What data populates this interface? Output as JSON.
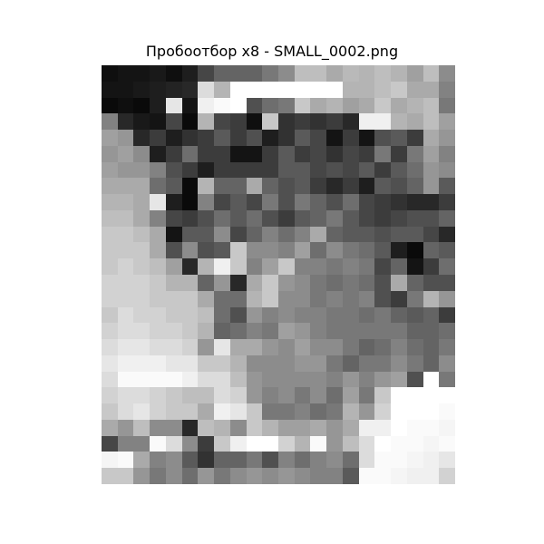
{
  "title": "Пробоотбор x8 - SMALL_0002.png",
  "image": {
    "rows": 26,
    "cols": 22,
    "pixels": [
      [
        15,
        20,
        20,
        25,
        15,
        30,
        70,
        100,
        100,
        100,
        120,
        140,
        190,
        190,
        170,
        185,
        180,
        190,
        180,
        160,
        190,
        140
      ],
      [
        20,
        20,
        25,
        30,
        35,
        40,
        220,
        180,
        255,
        255,
        255,
        255,
        255,
        255,
        255,
        180,
        180,
        190,
        200,
        170,
        170,
        130
      ],
      [
        10,
        15,
        10,
        30,
        230,
        20,
        240,
        250,
        255,
        80,
        110,
        120,
        200,
        170,
        180,
        160,
        170,
        200,
        170,
        180,
        190,
        120
      ],
      [
        130,
        40,
        25,
        20,
        70,
        10,
        180,
        70,
        60,
        15,
        200,
        50,
        60,
        50,
        60,
        40,
        240,
        240,
        180,
        170,
        190,
        160
      ],
      [
        160,
        150,
        40,
        60,
        30,
        50,
        60,
        90,
        60,
        80,
        30,
        50,
        90,
        70,
        20,
        60,
        20,
        80,
        90,
        60,
        170,
        150
      ],
      [
        150,
        160,
        140,
        30,
        60,
        110,
        60,
        60,
        20,
        20,
        60,
        90,
        60,
        70,
        50,
        70,
        60,
        120,
        60,
        120,
        160,
        130
      ],
      [
        160,
        150,
        150,
        130,
        80,
        60,
        30,
        60,
        60,
        60,
        60,
        90,
        90,
        70,
        80,
        70,
        90,
        60,
        90,
        110,
        150,
        140
      ],
      [
        170,
        170,
        170,
        110,
        90,
        10,
        180,
        100,
        100,
        170,
        100,
        80,
        90,
        60,
        40,
        60,
        30,
        90,
        80,
        100,
        150,
        90
      ],
      [
        180,
        180,
        170,
        230,
        30,
        10,
        130,
        70,
        90,
        70,
        120,
        80,
        120,
        100,
        80,
        110,
        70,
        60,
        50,
        40,
        40,
        60
      ],
      [
        190,
        190,
        170,
        130,
        70,
        60,
        80,
        110,
        90,
        110,
        80,
        60,
        90,
        100,
        120,
        90,
        70,
        60,
        70,
        80,
        80,
        100
      ],
      [
        200,
        200,
        190,
        170,
        20,
        90,
        90,
        140,
        70,
        100,
        130,
        110,
        130,
        170,
        100,
        90,
        90,
        80,
        90,
        90,
        70,
        40
      ],
      [
        200,
        200,
        200,
        170,
        80,
        140,
        80,
        90,
        200,
        140,
        140,
        130,
        160,
        110,
        140,
        120,
        110,
        90,
        30,
        10,
        100,
        90
      ],
      [
        200,
        210,
        200,
        190,
        160,
        40,
        180,
        240,
        200,
        130,
        160,
        200,
        130,
        130,
        120,
        130,
        120,
        70,
        100,
        20,
        60,
        110
      ],
      [
        210,
        210,
        210,
        200,
        180,
        180,
        100,
        150,
        40,
        170,
        200,
        150,
        140,
        120,
        110,
        120,
        110,
        80,
        170,
        100,
        80,
        80
      ],
      [
        210,
        210,
        210,
        200,
        200,
        200,
        170,
        110,
        110,
        180,
        200,
        140,
        140,
        120,
        130,
        120,
        130,
        80,
        60,
        120,
        180,
        150
      ],
      [
        200,
        220,
        210,
        210,
        200,
        200,
        190,
        110,
        80,
        150,
        130,
        140,
        130,
        130,
        120,
        120,
        110,
        120,
        100,
        90,
        100,
        60
      ],
      [
        210,
        220,
        220,
        210,
        210,
        200,
        180,
        100,
        110,
        130,
        120,
        160,
        150,
        130,
        120,
        120,
        120,
        120,
        120,
        100,
        100,
        110
      ],
      [
        220,
        230,
        230,
        220,
        220,
        210,
        150,
        230,
        170,
        170,
        150,
        140,
        160,
        140,
        140,
        120,
        100,
        110,
        130,
        110,
        100,
        120
      ],
      [
        230,
        240,
        240,
        240,
        230,
        230,
        200,
        200,
        180,
        140,
        140,
        140,
        150,
        150,
        120,
        100,
        120,
        120,
        140,
        120,
        100,
        140
      ],
      [
        220,
        250,
        250,
        250,
        250,
        240,
        220,
        220,
        190,
        150,
        140,
        140,
        140,
        140,
        130,
        150,
        130,
        150,
        160,
        80,
        255,
        120
      ],
      [
        210,
        220,
        220,
        210,
        200,
        190,
        190,
        220,
        210,
        150,
        130,
        140,
        120,
        140,
        110,
        160,
        120,
        200,
        255,
        255,
        255,
        255
      ],
      [
        200,
        220,
        230,
        210,
        200,
        200,
        170,
        240,
        230,
        200,
        120,
        120,
        130,
        110,
        120,
        180,
        150,
        210,
        255,
        255,
        255,
        250
      ],
      [
        170,
        150,
        190,
        140,
        140,
        40,
        190,
        180,
        140,
        200,
        180,
        160,
        160,
        170,
        150,
        170,
        240,
        240,
        255,
        250,
        250,
        245
      ],
      [
        70,
        130,
        130,
        250,
        220,
        140,
        60,
        200,
        240,
        255,
        255,
        210,
        180,
        250,
        150,
        190,
        220,
        255,
        250,
        250,
        245,
        250
      ],
      [
        245,
        250,
        170,
        130,
        140,
        90,
        50,
        100,
        100,
        120,
        80,
        130,
        110,
        130,
        140,
        110,
        220,
        250,
        250,
        245,
        240,
        230
      ],
      [
        200,
        200,
        150,
        120,
        140,
        110,
        150,
        120,
        140,
        150,
        140,
        150,
        140,
        130,
        130,
        90,
        250,
        250,
        245,
        240,
        240,
        210
      ]
    ]
  }
}
